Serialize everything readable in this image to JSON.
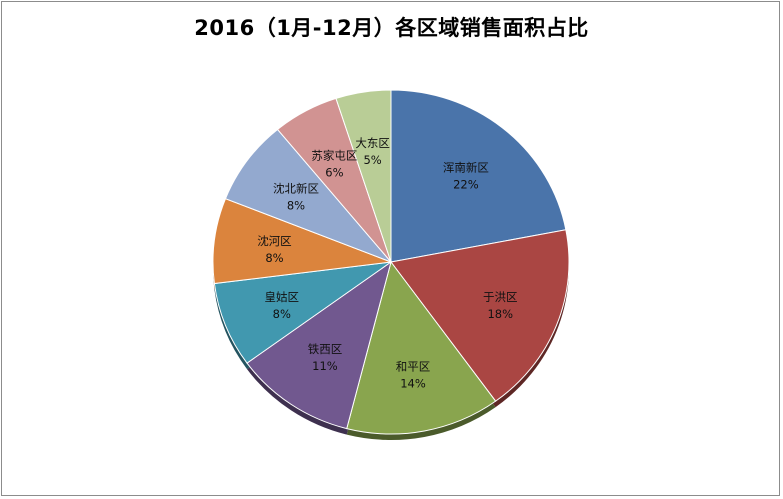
{
  "chart_data": {
    "type": "pie",
    "title": "2016（1月-12月）各区域销售面积占比",
    "start_angle_deg": 0,
    "direction": "clockwise",
    "slices": [
      {
        "label": "浑南新区",
        "value": 22,
        "pct_label": "22%",
        "color": "#4a74aa"
      },
      {
        "label": "于洪区",
        "value": 18,
        "pct_label": "18%",
        "color": "#aa4643"
      },
      {
        "label": "和平区",
        "value": 14,
        "pct_label": "14%",
        "color": "#89a54e"
      },
      {
        "label": "铁西区",
        "value": 11,
        "pct_label": "11%",
        "color": "#71588f"
      },
      {
        "label": "皇姑区",
        "value": 8,
        "pct_label": "8%",
        "color": "#4198af"
      },
      {
        "label": "沈河区",
        "value": 8,
        "pct_label": "8%",
        "color": "#db843d"
      },
      {
        "label": "沈北新区",
        "value": 8,
        "pct_label": "8%",
        "color": "#93a9cf"
      },
      {
        "label": "苏家屯区",
        "value": 6,
        "pct_label": "6%",
        "color": "#d19392"
      },
      {
        "label": "大东区",
        "value": 5,
        "pct_label": "5%",
        "color": "#b9cd96"
      }
    ]
  }
}
